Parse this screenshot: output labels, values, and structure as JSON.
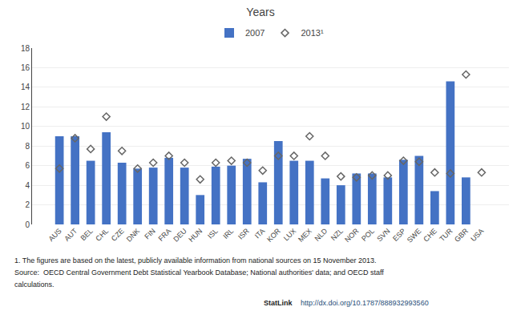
{
  "chart_data": {
    "type": "bar",
    "title": "Years",
    "categories": [
      "AUS",
      "AUT",
      "BEL",
      "CHL",
      "CZE",
      "DNK",
      "FIN",
      "FRA",
      "DEU",
      "HUN",
      "ISL",
      "IRL",
      "ISR",
      "ITA",
      "KOR",
      "LUX",
      "MEX",
      "NLD",
      "NZL",
      "NOR",
      "POL",
      "SVN",
      "ESP",
      "SWE",
      "CHE",
      "TUR",
      "GBR",
      "USA"
    ],
    "series": [
      {
        "name": "2007",
        "type": "bar",
        "color": "#4472C4",
        "values": [
          9.0,
          9.0,
          6.5,
          9.4,
          6.3,
          5.7,
          5.8,
          6.8,
          5.8,
          3.0,
          5.9,
          6.0,
          6.7,
          4.3,
          8.5,
          6.5,
          6.5,
          4.7,
          4.0,
          5.2,
          5.2,
          4.8,
          6.6,
          7.0,
          3.4,
          14.6,
          4.8,
          0
        ]
      },
      {
        "name": "2013¹",
        "type": "scatter",
        "marker": "diamond-open",
        "color": "#666666",
        "values": [
          5.7,
          8.8,
          7.7,
          11.0,
          7.5,
          5.7,
          6.3,
          7.0,
          6.3,
          4.6,
          6.3,
          6.5,
          6.3,
          5.5,
          7.0,
          7.0,
          9.0,
          7.0,
          4.9,
          4.8,
          5.0,
          5.0,
          6.5,
          6.4,
          5.3,
          5.2,
          15.3,
          5.3
        ]
      }
    ],
    "ylim": [
      0,
      18
    ],
    "yticks": [
      0,
      2,
      4,
      6,
      8,
      10,
      12,
      14,
      16,
      18
    ],
    "grid": true,
    "legend": "top",
    "annotations": [
      "1. The figures are based on the latest, publicly available information from national sources on 15 November 2013.",
      "Source:  OECD Central Government Debt Statistical Yearbook Database; National authorities' data; and OECD staff",
      "calculations.",
      "StatLink",
      "http://dx.doi.org/10.1787/888932993560"
    ]
  }
}
